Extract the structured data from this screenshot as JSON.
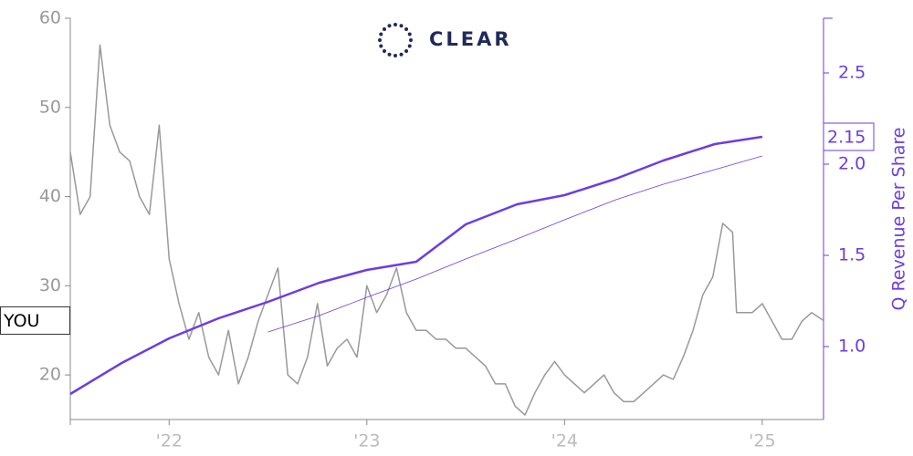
{
  "chart_data": {
    "type": "line",
    "logo": "CLEAR",
    "y2label": "Q Revenue Per Share",
    "xlim": [
      2021.5,
      2025.31
    ],
    "xticks": [
      {
        "value": 2022,
        "label": "'22"
      },
      {
        "value": 2023,
        "label": "'23"
      },
      {
        "value": 2024,
        "label": "'24"
      },
      {
        "value": 2025,
        "label": "'25"
      }
    ],
    "ylim": [
      15,
      60
    ],
    "yticks": [
      20,
      30,
      40,
      50,
      60
    ],
    "y2lim": [
      0.6,
      2.8
    ],
    "y2ticks": [
      {
        "value": 1.0,
        "label": "1.0"
      },
      {
        "value": 1.5,
        "label": "1.5"
      },
      {
        "value": 2.0,
        "label": "2.0"
      },
      {
        "value": 2.5,
        "label": "2.5"
      }
    ],
    "series": [
      {
        "name": "YOU",
        "color": "#999999",
        "axis": "y",
        "x": [
          2021.5,
          2021.55,
          2021.6,
          2021.65,
          2021.7,
          2021.75,
          2021.8,
          2021.85,
          2021.9,
          2021.95,
          2022.0,
          2022.05,
          2022.1,
          2022.15,
          2022.2,
          2022.25,
          2022.3,
          2022.35,
          2022.4,
          2022.45,
          2022.5,
          2022.55,
          2022.6,
          2022.65,
          2022.7,
          2022.75,
          2022.8,
          2022.85,
          2022.9,
          2022.95,
          2023.0,
          2023.05,
          2023.1,
          2023.15,
          2023.2,
          2023.25,
          2023.3,
          2023.35,
          2023.4,
          2023.45,
          2023.5,
          2023.55,
          2023.6,
          2023.65,
          2023.7,
          2023.75,
          2023.8,
          2023.85,
          2023.9,
          2023.95,
          2024.0,
          2024.05,
          2024.1,
          2024.15,
          2024.2,
          2024.25,
          2024.3,
          2024.35,
          2024.4,
          2024.45,
          2024.5,
          2024.55,
          2024.6,
          2024.65,
          2024.7,
          2024.75,
          2024.8,
          2024.85,
          2024.87,
          2024.9,
          2024.95,
          2025.0,
          2025.05,
          2025.1,
          2025.15,
          2025.2,
          2025.25,
          2025.31
        ],
        "values": [
          45,
          38,
          40,
          57,
          48,
          45,
          44,
          40,
          38,
          48,
          33,
          28,
          24,
          27,
          22,
          20,
          25,
          19,
          22,
          26,
          29,
          32,
          20,
          19,
          22,
          28,
          21,
          23,
          24,
          22,
          30,
          27,
          29,
          32,
          27,
          25,
          25,
          24,
          24,
          23,
          23,
          22,
          21,
          19,
          19,
          16.5,
          15.5,
          18,
          20,
          21.5,
          20,
          19,
          18,
          19,
          20,
          18,
          17,
          17,
          18,
          19,
          20,
          19.5,
          22,
          25,
          29,
          31,
          37,
          36,
          27,
          27,
          27,
          28,
          26,
          24,
          24,
          26,
          27,
          26.1
        ]
      },
      {
        "color": "#6b3ce6",
        "axis": "y2",
        "width": 2.5,
        "x": [
          2021.5,
          2021.76,
          2022.0,
          2022.25,
          2022.5,
          2022.76,
          2023.0,
          2023.25,
          2023.5,
          2023.76,
          2024.0,
          2024.26,
          2024.5,
          2024.76,
          2025.0
        ],
        "values": [
          0.74,
          0.91,
          1.045,
          1.155,
          1.245,
          1.35,
          1.42,
          1.465,
          1.67,
          1.78,
          1.83,
          1.92,
          2.02,
          2.11,
          2.15
        ]
      },
      {
        "color": "#6b3ce6",
        "axis": "y2",
        "width": 0.8,
        "x": [
          2022.5,
          2022.76,
          2023.0,
          2023.25,
          2023.5,
          2023.76,
          2024.0,
          2024.26,
          2024.5,
          2024.76,
          2025.0
        ],
        "values": [
          1.08,
          1.17,
          1.27,
          1.37,
          1.48,
          1.59,
          1.695,
          1.805,
          1.89,
          1.97,
          2.045
        ]
      }
    ]
  }
}
